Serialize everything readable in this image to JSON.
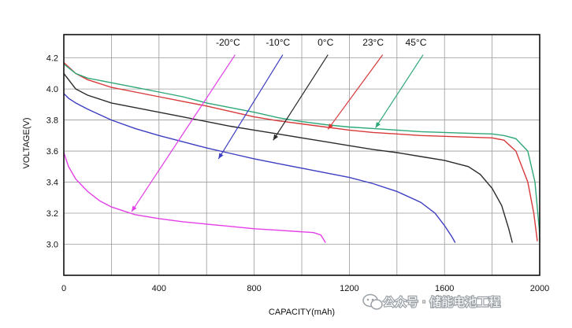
{
  "chart_data": {
    "type": "line",
    "xlabel": "CAPACITY(mAh)",
    "ylabel": "VOLTAGE(V)",
    "xlim": [
      0,
      2000
    ],
    "ylim": [
      2.8,
      4.35
    ],
    "x_ticks": [
      0,
      400,
      800,
      1200,
      1600,
      2000
    ],
    "x_tick_labels": [
      "0",
      "400",
      "800",
      "1200",
      "1600",
      "2000"
    ],
    "y_ticks": [
      3.0,
      3.2,
      3.4,
      3.6,
      3.8,
      4.0,
      4.2
    ],
    "y_tick_labels": [
      "3.0",
      "3.2",
      "3.4",
      "3.6",
      "3.8",
      "4.0",
      "4.2"
    ],
    "grid": true,
    "legend": "top, labels with pointer arrows",
    "series": [
      {
        "name": "-20°C",
        "color": "#e43ee8",
        "label_at": [
          690,
          4.28
        ],
        "arrow_tail": [
          720,
          4.22
        ],
        "arrow_head": [
          285,
          3.21
        ],
        "points": [
          [
            0,
            3.59
          ],
          [
            20,
            3.5
          ],
          [
            50,
            3.42
          ],
          [
            100,
            3.34
          ],
          [
            150,
            3.28
          ],
          [
            200,
            3.24
          ],
          [
            250,
            3.215
          ],
          [
            300,
            3.19
          ],
          [
            400,
            3.165
          ],
          [
            500,
            3.145
          ],
          [
            600,
            3.13
          ],
          [
            700,
            3.115
          ],
          [
            800,
            3.1
          ],
          [
            900,
            3.09
          ],
          [
            1000,
            3.08
          ],
          [
            1050,
            3.075
          ],
          [
            1080,
            3.06
          ],
          [
            1100,
            3.01
          ]
        ]
      },
      {
        "name": "-10°C",
        "color": "#3e3ec2",
        "label_at": [
          900,
          4.28
        ],
        "arrow_tail": [
          920,
          4.22
        ],
        "arrow_head": [
          650,
          3.55
        ],
        "points": [
          [
            0,
            3.97
          ],
          [
            20,
            3.94
          ],
          [
            50,
            3.91
          ],
          [
            100,
            3.87
          ],
          [
            200,
            3.8
          ],
          [
            300,
            3.745
          ],
          [
            400,
            3.7
          ],
          [
            500,
            3.66
          ],
          [
            600,
            3.62
          ],
          [
            700,
            3.585
          ],
          [
            800,
            3.55
          ],
          [
            900,
            3.52
          ],
          [
            1000,
            3.49
          ],
          [
            1100,
            3.46
          ],
          [
            1200,
            3.43
          ],
          [
            1300,
            3.39
          ],
          [
            1400,
            3.34
          ],
          [
            1500,
            3.27
          ],
          [
            1560,
            3.2
          ],
          [
            1600,
            3.12
          ],
          [
            1630,
            3.05
          ],
          [
            1645,
            3.01
          ]
        ]
      },
      {
        "name": "0°C",
        "color": "#2b2b2b",
        "label_at": [
          1100,
          4.28
        ],
        "arrow_tail": [
          1110,
          4.22
        ],
        "arrow_head": [
          880,
          3.67
        ],
        "points": [
          [
            0,
            4.1
          ],
          [
            50,
            4.0
          ],
          [
            100,
            3.96
          ],
          [
            200,
            3.91
          ],
          [
            300,
            3.88
          ],
          [
            400,
            3.85
          ],
          [
            500,
            3.82
          ],
          [
            600,
            3.79
          ],
          [
            700,
            3.76
          ],
          [
            800,
            3.735
          ],
          [
            900,
            3.71
          ],
          [
            1000,
            3.685
          ],
          [
            1100,
            3.66
          ],
          [
            1200,
            3.635
          ],
          [
            1300,
            3.61
          ],
          [
            1400,
            3.59
          ],
          [
            1500,
            3.565
          ],
          [
            1600,
            3.54
          ],
          [
            1700,
            3.5
          ],
          [
            1750,
            3.45
          ],
          [
            1800,
            3.36
          ],
          [
            1840,
            3.25
          ],
          [
            1870,
            3.1
          ],
          [
            1885,
            3.01
          ]
        ]
      },
      {
        "name": "23°C",
        "color": "#d83a3a",
        "label_at": [
          1300,
          4.28
        ],
        "arrow_tail": [
          1340,
          4.22
        ],
        "arrow_head": [
          1110,
          3.74
        ],
        "points": [
          [
            0,
            4.17
          ],
          [
            50,
            4.1
          ],
          [
            100,
            4.06
          ],
          [
            200,
            4.01
          ],
          [
            300,
            3.98
          ],
          [
            400,
            3.95
          ],
          [
            500,
            3.92
          ],
          [
            600,
            3.89
          ],
          [
            700,
            3.855
          ],
          [
            800,
            3.82
          ],
          [
            900,
            3.795
          ],
          [
            1000,
            3.775
          ],
          [
            1100,
            3.755
          ],
          [
            1200,
            3.735
          ],
          [
            1300,
            3.72
          ],
          [
            1400,
            3.71
          ],
          [
            1500,
            3.7
          ],
          [
            1600,
            3.695
          ],
          [
            1700,
            3.69
          ],
          [
            1800,
            3.685
          ],
          [
            1850,
            3.67
          ],
          [
            1900,
            3.6
          ],
          [
            1950,
            3.4
          ],
          [
            1975,
            3.2
          ],
          [
            1990,
            3.02
          ]
        ]
      },
      {
        "name": "45°C",
        "color": "#2ea878",
        "label_at": [
          1480,
          4.28
        ],
        "arrow_tail": [
          1510,
          4.22
        ],
        "arrow_head": [
          1310,
          3.75
        ],
        "points": [
          [
            0,
            4.16
          ],
          [
            50,
            4.1
          ],
          [
            100,
            4.07
          ],
          [
            200,
            4.04
          ],
          [
            300,
            4.01
          ],
          [
            400,
            3.98
          ],
          [
            500,
            3.95
          ],
          [
            600,
            3.91
          ],
          [
            700,
            3.88
          ],
          [
            800,
            3.85
          ],
          [
            900,
            3.815
          ],
          [
            1000,
            3.79
          ],
          [
            1100,
            3.77
          ],
          [
            1200,
            3.755
          ],
          [
            1300,
            3.745
          ],
          [
            1400,
            3.735
          ],
          [
            1500,
            3.725
          ],
          [
            1600,
            3.72
          ],
          [
            1700,
            3.715
          ],
          [
            1800,
            3.71
          ],
          [
            1850,
            3.7
          ],
          [
            1900,
            3.68
          ],
          [
            1950,
            3.6
          ],
          [
            1980,
            3.4
          ],
          [
            1998,
            3.1
          ],
          [
            2000,
            3.02
          ]
        ]
      }
    ]
  },
  "watermark": {
    "icon": "wechat-icon",
    "text": "公众号 · 储能电池工程"
  }
}
